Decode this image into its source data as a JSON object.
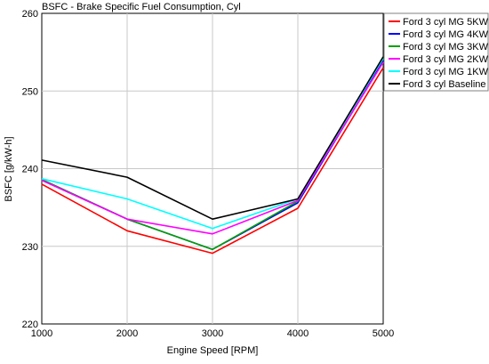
{
  "chart_data": {
    "type": "line",
    "title": "BSFC - Brake Specific Fuel Consumption, Cyl",
    "xlabel": "Engine Speed [RPM]",
    "ylabel": "BSFC [g/kW-h]",
    "x": [
      1000,
      2000,
      3000,
      4000,
      5000
    ],
    "xlim": [
      1000,
      5000
    ],
    "ylim": [
      220,
      260
    ],
    "xticks": [
      "1000",
      "2000",
      "3000",
      "4000",
      "5000"
    ],
    "yticks": [
      "220",
      "230",
      "240",
      "250",
      "260"
    ],
    "grid": true,
    "legend_position": "top-right",
    "series": [
      {
        "name": "Ford 3 cyl MG 5KW",
        "color": "#ff0000",
        "values": [
          238.0,
          232.0,
          229.1,
          234.9,
          253.0
        ]
      },
      {
        "name": "Ford 3 cyl MG 4KW",
        "color": "#0000ff",
        "values": [
          238.6,
          233.5,
          229.6,
          235.6,
          253.9
        ]
      },
      {
        "name": "Ford 3 cyl MG 3KW",
        "color": "#00a000",
        "values": [
          238.6,
          233.5,
          229.6,
          235.8,
          254.4
        ]
      },
      {
        "name": "Ford 3 cyl MG 2KW",
        "color": "#ff00ff",
        "values": [
          238.5,
          233.5,
          231.6,
          235.9,
          253.7
        ]
      },
      {
        "name": "Ford 3 cyl MG 1KW",
        "color": "#00ffff",
        "values": [
          238.7,
          236.1,
          232.3,
          236.1,
          254.2
        ]
      },
      {
        "name": "Ford 3 cyl Baseline",
        "color": "#000000",
        "values": [
          241.1,
          238.9,
          233.5,
          236.1,
          254.4
        ]
      }
    ]
  }
}
